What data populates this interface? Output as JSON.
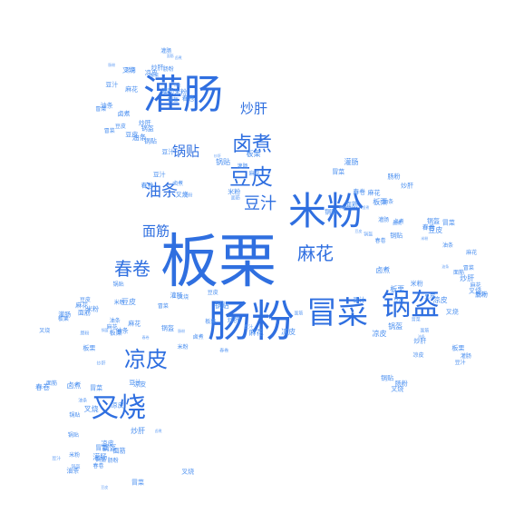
{
  "colors": {
    "primary": "#2f6fe0",
    "secondary": "#4a8ff0",
    "tiny": "#6aa3f5"
  },
  "large_words": [
    "板栗",
    "肠粉",
    "米粉",
    "灌肠",
    "冒菜",
    "锅盔",
    "叉烧",
    "凉皮",
    "豆皮",
    "卤煮",
    "春卷",
    "麻花",
    "油条",
    "豆汁",
    "面筋",
    "锅贴",
    "炒肝"
  ],
  "small_words": [
    "叉烧",
    "春卷",
    "豆汁",
    "灌肠",
    "凉皮",
    "锅盔",
    "卤煮",
    "冒菜",
    "油条",
    "肠粉",
    "板栗",
    "豆皮",
    "米粉",
    "锅贴",
    "炒肝",
    "面筋",
    "麻花",
    "冒菜",
    "豆皮",
    "凉皮",
    "炒肝",
    "锅盔",
    "卤煮",
    "油条",
    "肠粉",
    "豆汁",
    "叉烧",
    "灌肠",
    "春卷",
    "板栗",
    "米粉",
    "锅贴",
    "面筋",
    "麻花",
    "卤煮",
    "冒菜",
    "锅盔",
    "油条",
    "凉皮",
    "豆皮",
    "叉烧",
    "豆汁",
    "灌肠",
    "春卷",
    "板栗",
    "肠粉",
    "米粉",
    "锅贴",
    "炒肝",
    "面筋",
    "麻花",
    "卤煮",
    "冒菜",
    "油条",
    "凉皮",
    "豆皮",
    "锅盔",
    "叉烧",
    "豆汁",
    "灌肠",
    "春卷",
    "板栗",
    "米粉",
    "肠粉",
    "炒肝",
    "面筋",
    "麻花",
    "锅贴",
    "卤煮",
    "冒菜",
    "油条",
    "凉皮",
    "豆皮",
    "锅盔",
    "叉烧",
    "豆汁",
    "灌肠",
    "春卷",
    "板栗",
    "米粉",
    "肠粉",
    "炒肝",
    "面筋",
    "麻花",
    "锅贴",
    "卤煮",
    "冒菜",
    "油条",
    "凉皮",
    "豆皮",
    "锅盔",
    "叉烧",
    "豆汁",
    "灌肠",
    "春卷",
    "板栗",
    "米粉",
    "肠粉",
    "炒肝",
    "面筋",
    "麻花",
    "锅贴",
    "卤煮",
    "冒菜",
    "油条",
    "凉皮",
    "豆皮",
    "锅盔",
    "叉烧",
    "豆汁",
    "灌肠",
    "春卷",
    "板栗",
    "米粉",
    "肠粉",
    "炒肝",
    "面筋",
    "麻花",
    "锅贴",
    "卤煮",
    "冒菜",
    "油条",
    "凉皮",
    "豆皮",
    "锅盔",
    "叉烧",
    "豆汁",
    "灌肠",
    "春卷",
    "板栗",
    "米粉",
    "肠粉",
    "炒肝",
    "面筋",
    "麻花",
    "锅贴",
    "卤煮",
    "冒菜",
    "油条",
    "凉皮",
    "豆皮",
    "锅盔",
    "叉烧",
    "豆汁",
    "灌肠",
    "春卷",
    "板栗",
    "米粉",
    "肠粉",
    "炒肝",
    "面筋",
    "麻花",
    "锅贴",
    "卤煮",
    "冒菜",
    "油条",
    "凉皮",
    "豆皮",
    "锅盔",
    "叉烧"
  ]
}
